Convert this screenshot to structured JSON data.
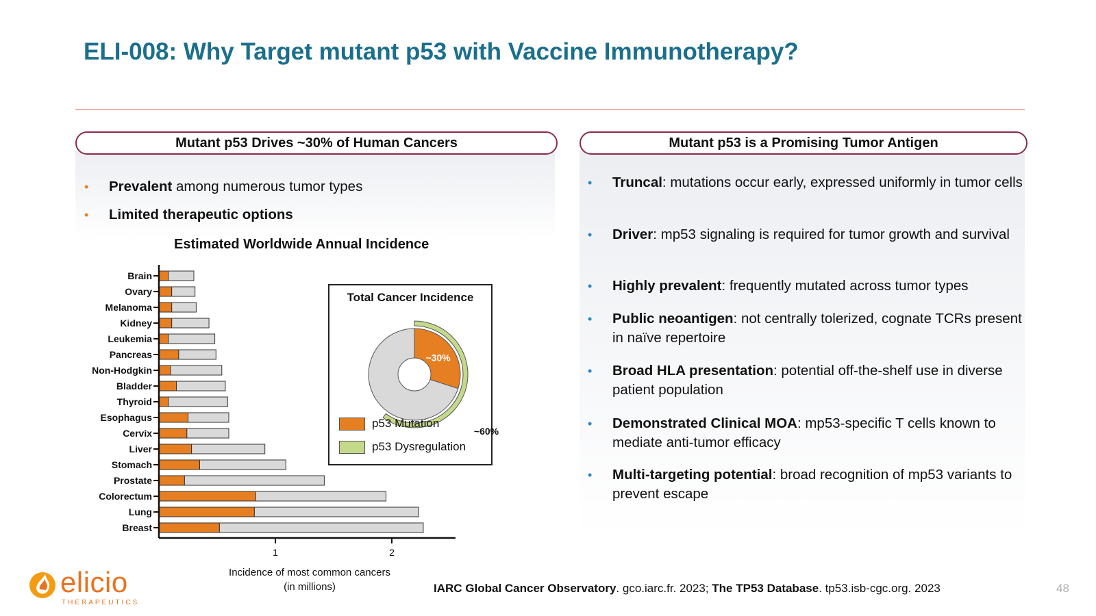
{
  "slide": {
    "title": "ELI-008: Why Target mutant p53 with Vaccine Immunotherapy?",
    "page_number": "48",
    "source_prefix": "IARC Global Cancer Observatory",
    "source_mid": ". gco.iarc.fr. 2023; ",
    "source_bold2": "The TP53 Database",
    "source_suffix": ". tp53.isb-cgc.org. 2023"
  },
  "left_panel": {
    "header": "Mutant p53 Drives ~30% of Human Cancers",
    "bullets": [
      {
        "bold": "Prevalent",
        "text": " among numerous tumor types"
      },
      {
        "bold": "Limited therapeutic options",
        "text": ""
      }
    ]
  },
  "right_panel": {
    "header": "Mutant p53 is a Promising Tumor Antigen",
    "bullets": [
      {
        "bold": "Truncal",
        "text": ": mutations occur early, expressed uniformly in tumor cells"
      },
      {
        "bold": "Driver",
        "text": ": mp53 signaling is required for tumor growth and survival"
      },
      {
        "bold": "Highly prevalent",
        "text": ": frequently mutated across tumor types"
      },
      {
        "bold": "Public neoantigen",
        "text": ": not centrally tolerized, cognate TCRs present in naïve repertoire"
      },
      {
        "bold": "Broad HLA presentation",
        "text": ": potential off-the-shelf use in diverse patient population"
      },
      {
        "bold": "Demonstrated Clinical MOA",
        "text": ": mp53-specific T cells known to mediate anti-tumor efficacy"
      },
      {
        "bold": "Multi-targeting potential",
        "text": ": broad recognition of mp53 variants to prevent escape"
      }
    ]
  },
  "chart_data": [
    {
      "type": "bar",
      "orientation": "horizontal",
      "stacked": true,
      "title": "Estimated Worldwide Annual Incidence",
      "xlabel_line1": "Incidence of most common cancers",
      "xlabel_line2": "(in millions)",
      "x_ticks": [
        "1",
        "2"
      ],
      "xlim": [
        0,
        2.5
      ],
      "categories": [
        "Brain",
        "Ovary",
        "Melanoma",
        "Kidney",
        "Leukemia",
        "Pancreas",
        "Non-Hodgkin",
        "Bladder",
        "Thyroid",
        "Esophagus",
        "Cervix",
        "Liver",
        "Stomach",
        "Prostate",
        "Colorectum",
        "Lung",
        "Breast"
      ],
      "series": [
        {
          "name": "p53 Mutation",
          "color": "#e67e22",
          "values": [
            0.08,
            0.11,
            0.11,
            0.11,
            0.08,
            0.17,
            0.1,
            0.15,
            0.08,
            0.25,
            0.24,
            0.28,
            0.35,
            0.22,
            0.83,
            0.82,
            0.52
          ]
        },
        {
          "name": "",
          "color": "#d9d9d9",
          "values": [
            0.22,
            0.2,
            0.21,
            0.32,
            0.4,
            0.32,
            0.44,
            0.42,
            0.51,
            0.35,
            0.36,
            0.63,
            0.74,
            1.2,
            1.12,
            1.41,
            1.75
          ]
        }
      ]
    },
    {
      "type": "pie",
      "title": "Total Cancer Incidence",
      "slices": [
        {
          "label": "~30%",
          "value": 30,
          "color": "#e67e22"
        },
        {
          "label": "",
          "value": 70,
          "color": "#d9d9d9"
        }
      ],
      "outer_arc": {
        "label": "~60%",
        "value": 60,
        "color": "#c5d98a"
      },
      "legend": [
        {
          "name": "p53 Mutation",
          "color": "#e67e22"
        },
        {
          "name": "p53 Dysregulation",
          "color": "#c5d98a"
        }
      ]
    }
  ]
}
